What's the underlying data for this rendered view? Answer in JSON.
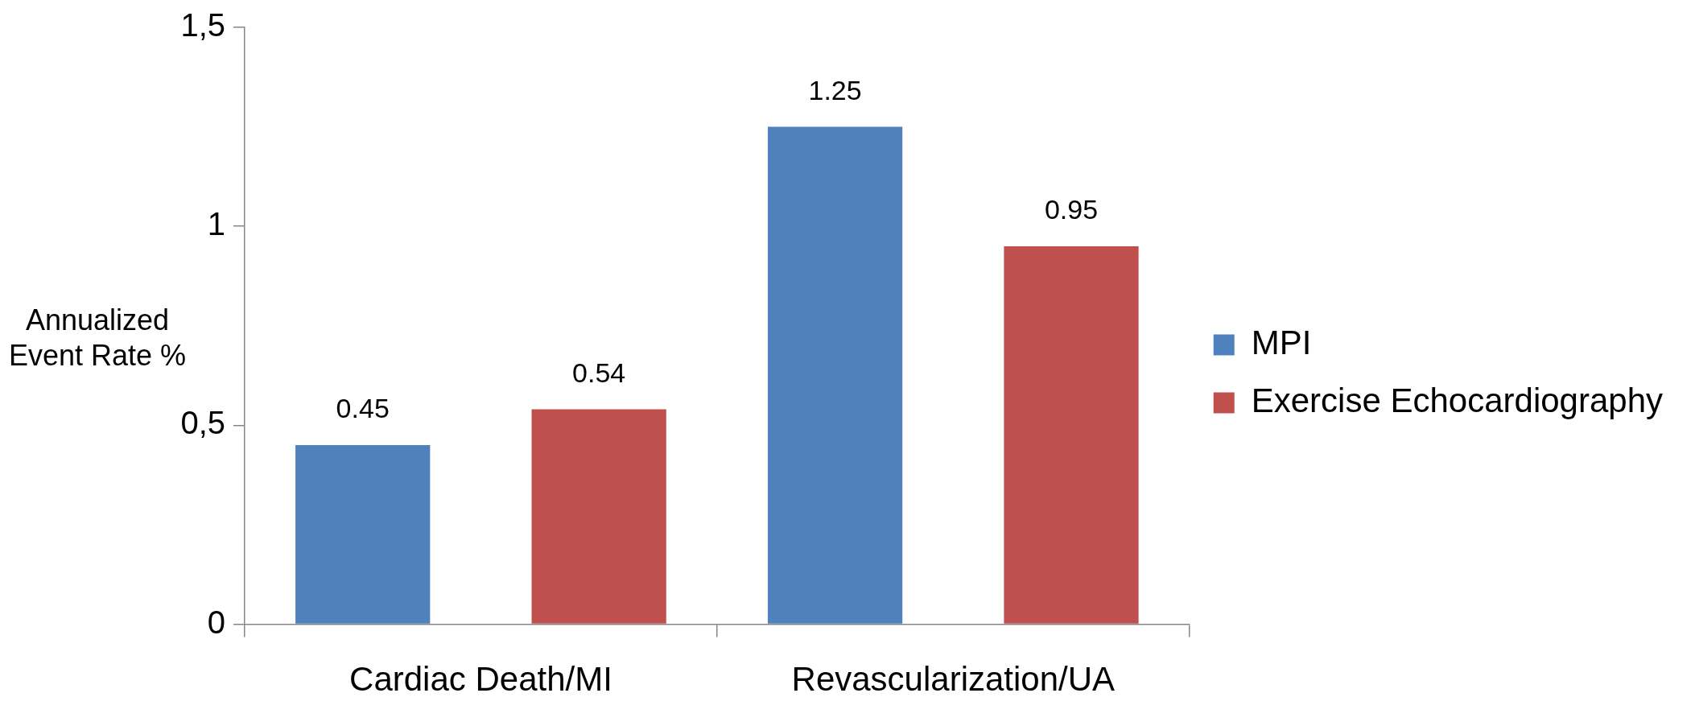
{
  "chart_data": {
    "type": "bar",
    "ylabel": "Annualized Event Rate %",
    "categories": [
      "Cardiac Death/MI",
      "Revascularization/UA"
    ],
    "series": [
      {
        "name": "MPI",
        "color": "#4f81bd",
        "values": [
          0.45,
          1.25
        ]
      },
      {
        "name": "Exercise Echocardiography",
        "color": "#c0504d",
        "values": [
          0.54,
          0.95
        ]
      }
    ],
    "ylim": [
      0,
      1.5
    ],
    "yticks": [
      0,
      {
        "value": 0.5,
        "label": "0,5"
      },
      1,
      {
        "value": 1.5,
        "label": "1,5"
      }
    ],
    "data_labels": true,
    "legend": "right"
  }
}
